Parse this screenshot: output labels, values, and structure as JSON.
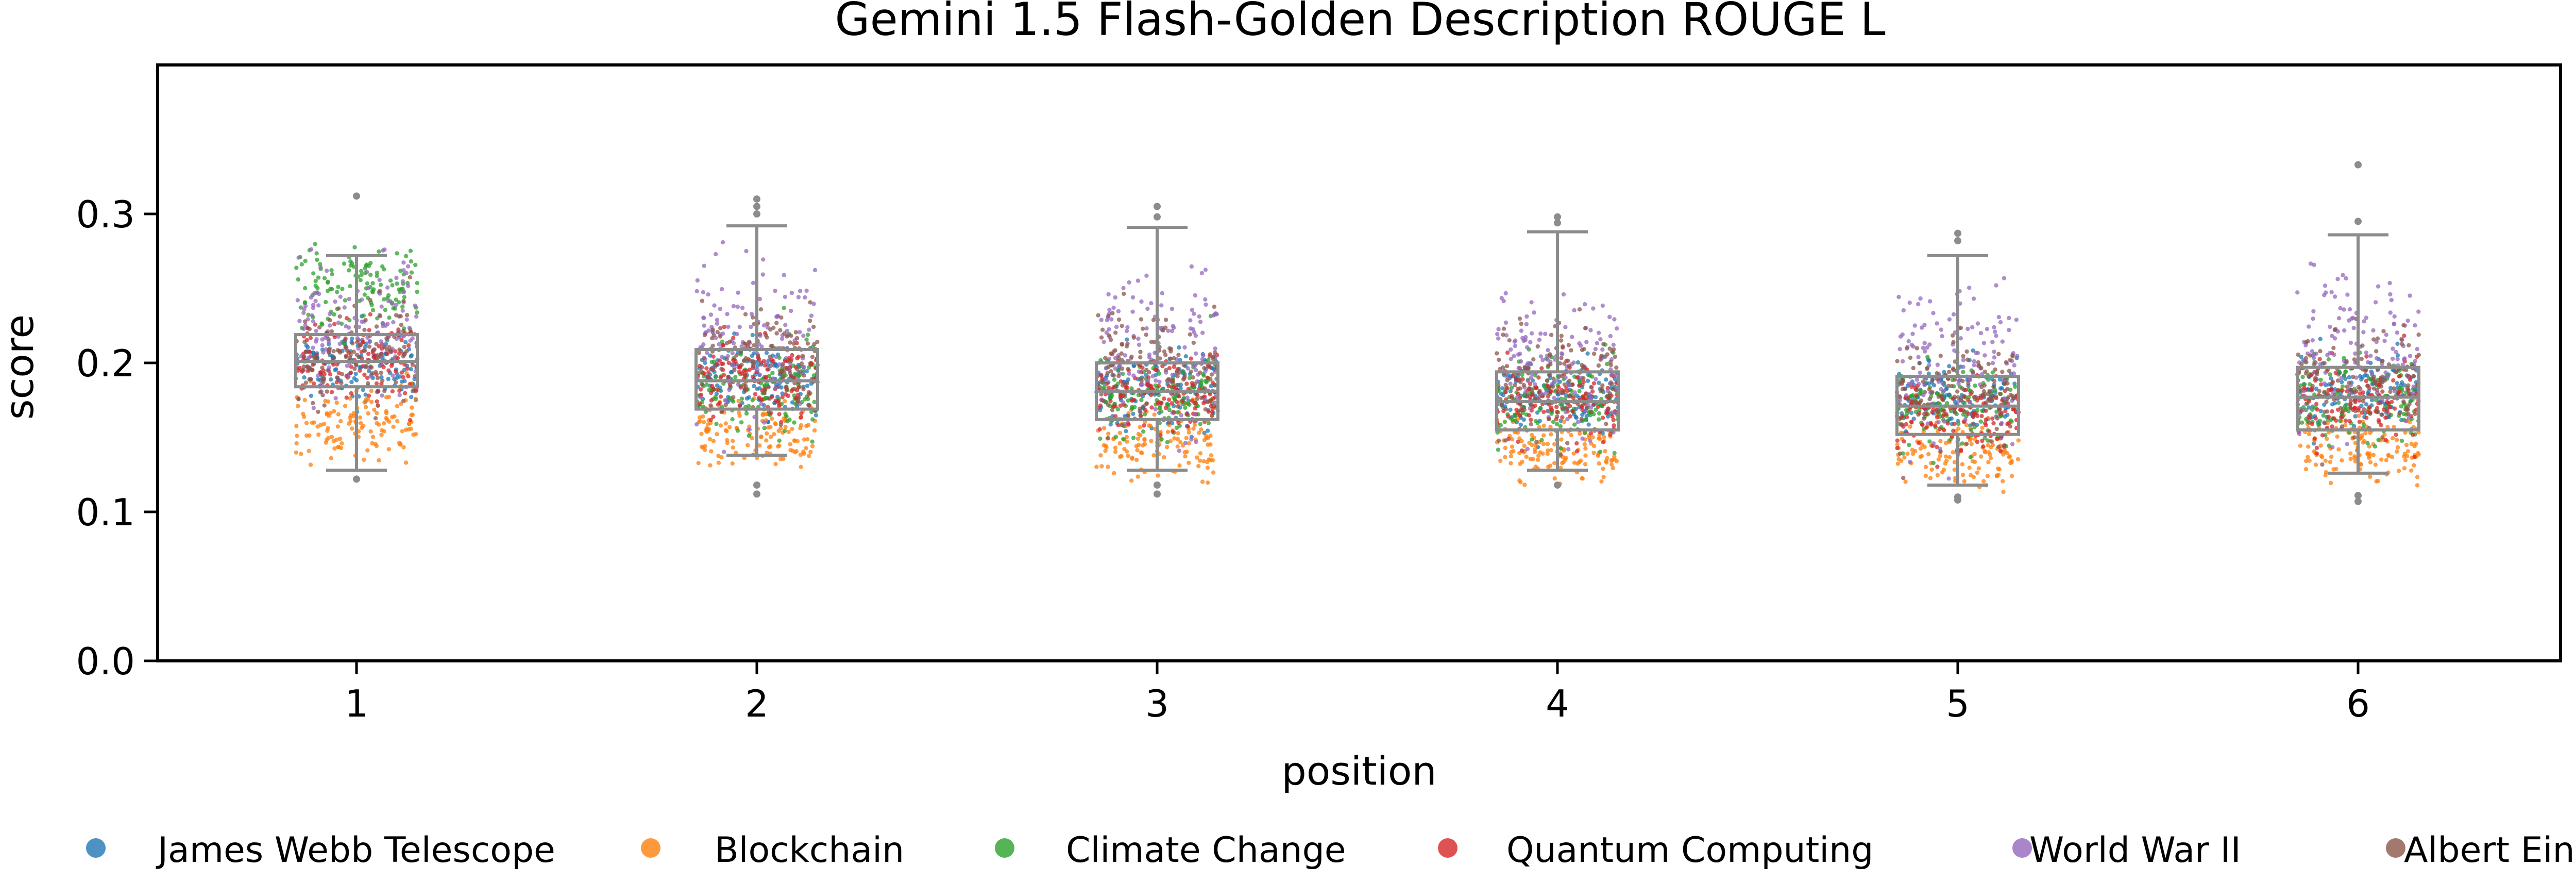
{
  "chart_data": {
    "type": "box_strip",
    "title": "Gemini 1.5 Flash-Golden Description ROUGE L",
    "xlabel": "position",
    "ylabel": "score",
    "categories": [
      "1",
      "2",
      "3",
      "4",
      "5",
      "6"
    ],
    "ylim": [
      0.0,
      0.4
    ],
    "yticks": [
      0.0,
      0.1,
      0.2,
      0.3
    ],
    "ytick_labels": [
      "0.0",
      "0.1",
      "0.2",
      "0.3"
    ],
    "grid": false,
    "legend_placement": "bottom",
    "boxes": [
      {
        "category": "1",
        "whisker_low": 0.128,
        "q1": 0.184,
        "median": 0.201,
        "q3": 0.219,
        "whisker_high": 0.272,
        "fliers": [
          0.312,
          0.122
        ]
      },
      {
        "category": "2",
        "whisker_low": 0.138,
        "q1": 0.169,
        "median": 0.188,
        "q3": 0.209,
        "whisker_high": 0.292,
        "fliers": [
          0.31,
          0.305,
          0.3,
          0.118,
          0.112
        ]
      },
      {
        "category": "3",
        "whisker_low": 0.128,
        "q1": 0.162,
        "median": 0.181,
        "q3": 0.2,
        "whisker_high": 0.291,
        "fliers": [
          0.305,
          0.298,
          0.112,
          0.118
        ]
      },
      {
        "category": "4",
        "whisker_low": 0.128,
        "q1": 0.155,
        "median": 0.174,
        "q3": 0.194,
        "whisker_high": 0.288,
        "fliers": [
          0.298,
          0.294,
          0.118
        ]
      },
      {
        "category": "5",
        "whisker_low": 0.118,
        "q1": 0.152,
        "median": 0.171,
        "q3": 0.191,
        "whisker_high": 0.272,
        "fliers": [
          0.287,
          0.282,
          0.11,
          0.108
        ]
      },
      {
        "category": "6",
        "whisker_low": 0.126,
        "q1": 0.155,
        "median": 0.177,
        "q3": 0.197,
        "whisker_high": 0.286,
        "fliers": [
          0.333,
          0.295,
          0.111,
          0.107
        ]
      }
    ],
    "series": [
      {
        "name": "James Webb Telescope",
        "color": "#1f77b4",
        "means": [
          0.198,
          0.19,
          0.184,
          0.178,
          0.176,
          0.18
        ],
        "spread": 0.012
      },
      {
        "name": "Blockchain",
        "color": "#ff7f0e",
        "means": [
          0.158,
          0.152,
          0.146,
          0.142,
          0.14,
          0.145
        ],
        "spread": 0.012
      },
      {
        "name": "Climate Change",
        "color": "#2ca02c",
        "means": [
          0.252,
          0.182,
          0.178,
          0.172,
          0.17,
          0.176
        ],
        "spread": 0.014
      },
      {
        "name": "Quantum Computing",
        "color": "#d62728",
        "means": [
          0.2,
          0.188,
          0.18,
          0.176,
          0.164,
          0.176
        ],
        "spread": 0.013
      },
      {
        "name": "World War II",
        "color": "#9467bd",
        "means": [
          0.224,
          0.216,
          0.21,
          0.2,
          0.2,
          0.206
        ],
        "spread": 0.025
      },
      {
        "name": "Albert Einstein",
        "color": "#8c564b",
        "means": [
          0.204,
          0.2,
          0.196,
          0.188,
          0.182,
          0.19
        ],
        "spread": 0.018
      }
    ]
  }
}
